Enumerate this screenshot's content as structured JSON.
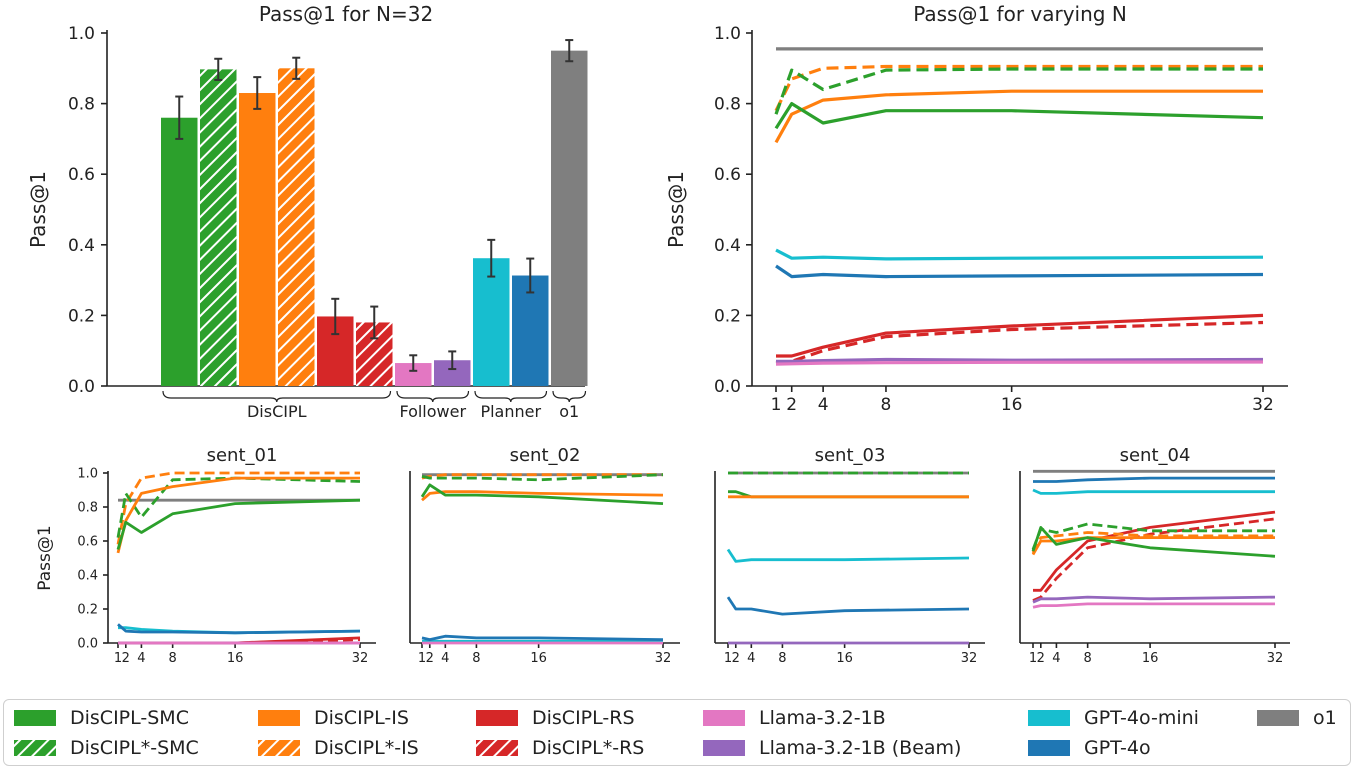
{
  "chart_data": [
    {
      "id": "bar",
      "type": "bar",
      "title": "Pass@1 for N=32",
      "ylabel": "Pass@1",
      "ylim": [
        0,
        1.0
      ],
      "yticks": [
        "0.0",
        "0.2",
        "0.4",
        "0.6",
        "0.8",
        "1.0"
      ],
      "bars": [
        {
          "name": "DisCIPL-SMC",
          "value": 0.76,
          "err": 0.06,
          "color": "#2ca02c",
          "hatch": false
        },
        {
          "name": "DisCIPL*-SMC",
          "value": 0.897,
          "err": 0.03,
          "color": "#2ca02c",
          "hatch": true
        },
        {
          "name": "DisCIPL-IS",
          "value": 0.83,
          "err": 0.045,
          "color": "#ff7f0e",
          "hatch": false
        },
        {
          "name": "DisCIPL*-IS",
          "value": 0.9,
          "err": 0.03,
          "color": "#ff7f0e",
          "hatch": true
        },
        {
          "name": "DisCIPL-RS",
          "value": 0.197,
          "err": 0.05,
          "color": "#d62728",
          "hatch": false
        },
        {
          "name": "DisCIPL*-RS",
          "value": 0.18,
          "err": 0.045,
          "color": "#d62728",
          "hatch": true
        },
        {
          "name": "Llama-3.2-1B",
          "value": 0.065,
          "err": 0.022,
          "color": "#e377c2",
          "hatch": false
        },
        {
          "name": "Llama-3.2-1B (Beam)",
          "value": 0.073,
          "err": 0.025,
          "color": "#9467bd",
          "hatch": false
        },
        {
          "name": "GPT-4o-mini",
          "value": 0.362,
          "err": 0.052,
          "color": "#17becf",
          "hatch": false
        },
        {
          "name": "GPT-4o",
          "value": 0.313,
          "err": 0.048,
          "color": "#1f77b4",
          "hatch": false
        },
        {
          "name": "o1",
          "value": 0.95,
          "err": 0.03,
          "color": "#7f7f7f",
          "hatch": false
        }
      ],
      "groups": [
        {
          "label": "DisCIPL",
          "first": 0,
          "last": 5
        },
        {
          "label": "Follower",
          "first": 6,
          "last": 7
        },
        {
          "label": "Planner",
          "first": 8,
          "last": 9
        },
        {
          "label": "o1",
          "first": 10,
          "last": 10
        }
      ]
    },
    {
      "id": "lines",
      "type": "line",
      "title": "Pass@1 for varying N",
      "ylabel": "Pass@1",
      "x": [
        1,
        2,
        4,
        8,
        16,
        32
      ],
      "xticks": [
        "1",
        "2",
        "4",
        "8",
        "16",
        "32"
      ],
      "ylim": [
        0,
        1.0
      ],
      "yticks": [
        "0.0",
        "0.2",
        "0.4",
        "0.6",
        "0.8",
        "1.0"
      ],
      "series": [
        {
          "name": "o1",
          "values": [
            0.955,
            0.955,
            0.955,
            0.955,
            0.955,
            0.955
          ],
          "color": "#7f7f7f",
          "dashed": false
        },
        {
          "name": "DisCIPL*-IS",
          "values": [
            0.78,
            0.87,
            0.9,
            0.905,
            0.905,
            0.905
          ],
          "color": "#ff7f0e",
          "dashed": true
        },
        {
          "name": "DisCIPL*-SMC",
          "values": [
            0.77,
            0.895,
            0.84,
            0.895,
            0.898,
            0.898
          ],
          "color": "#2ca02c",
          "dashed": true
        },
        {
          "name": "DisCIPL-IS",
          "values": [
            0.69,
            0.77,
            0.81,
            0.825,
            0.835,
            0.835
          ],
          "color": "#ff7f0e",
          "dashed": false
        },
        {
          "name": "DisCIPL-SMC",
          "values": [
            0.73,
            0.8,
            0.745,
            0.78,
            0.78,
            0.76
          ],
          "color": "#2ca02c",
          "dashed": false
        },
        {
          "name": "GPT-4o-mini",
          "values": [
            0.385,
            0.362,
            0.365,
            0.36,
            0.362,
            0.365
          ],
          "color": "#17becf",
          "dashed": false
        },
        {
          "name": "GPT-4o",
          "values": [
            0.34,
            0.31,
            0.316,
            0.31,
            0.312,
            0.316
          ],
          "color": "#1f77b4",
          "dashed": false
        },
        {
          "name": "DisCIPL-RS",
          "values": [
            0.085,
            0.085,
            0.11,
            0.15,
            0.17,
            0.2
          ],
          "color": "#d62728",
          "dashed": false
        },
        {
          "name": "DisCIPL*-RS",
          "values": [
            0.065,
            0.07,
            0.1,
            0.14,
            0.16,
            0.18
          ],
          "color": "#d62728",
          "dashed": true
        },
        {
          "name": "Llama-3.2-1B (Beam)",
          "values": [
            0.07,
            0.07,
            0.072,
            0.075,
            0.073,
            0.075
          ],
          "color": "#9467bd",
          "dashed": false
        },
        {
          "name": "Llama-3.2-1B",
          "values": [
            0.062,
            0.063,
            0.065,
            0.066,
            0.067,
            0.068
          ],
          "color": "#e377c2",
          "dashed": false
        }
      ]
    },
    {
      "id": "sent_01",
      "type": "line",
      "title": "sent_01",
      "ylabel": "Pass@1",
      "x": [
        1,
        2,
        4,
        8,
        16,
        32
      ],
      "xticks": [
        "1",
        "2",
        "4",
        "8",
        "16",
        "32"
      ],
      "ylim": [
        0,
        1.0
      ],
      "yticks": [
        "0.0",
        "0.2",
        "0.4",
        "0.6",
        "0.8",
        "1.0"
      ],
      "series": [
        {
          "name": "o1",
          "values": [
            0.84,
            0.84,
            0.84,
            0.84,
            0.84,
            0.84
          ],
          "color": "#7f7f7f",
          "dashed": false
        },
        {
          "name": "DisCIPL*-IS",
          "values": [
            0.58,
            0.82,
            0.97,
            1.0,
            1.0,
            1.0
          ],
          "color": "#ff7f0e",
          "dashed": true
        },
        {
          "name": "DisCIPL*-SMC",
          "values": [
            0.62,
            0.88,
            0.74,
            0.96,
            0.97,
            0.95
          ],
          "color": "#2ca02c",
          "dashed": true
        },
        {
          "name": "DisCIPL-IS",
          "values": [
            0.53,
            0.72,
            0.88,
            0.92,
            0.97,
            0.97
          ],
          "color": "#ff7f0e",
          "dashed": false
        },
        {
          "name": "DisCIPL-SMC",
          "values": [
            0.55,
            0.71,
            0.65,
            0.76,
            0.82,
            0.84
          ],
          "color": "#2ca02c",
          "dashed": false
        },
        {
          "name": "GPT-4o-mini",
          "values": [
            0.09,
            0.09,
            0.08,
            0.07,
            0.06,
            0.07
          ],
          "color": "#17becf",
          "dashed": false
        },
        {
          "name": "GPT-4o",
          "values": [
            0.11,
            0.07,
            0.065,
            0.065,
            0.06,
            0.07
          ],
          "color": "#1f77b4",
          "dashed": false
        },
        {
          "name": "DisCIPL-RS",
          "values": [
            0.0,
            0.0,
            0.0,
            0.0,
            0.0,
            0.03
          ],
          "color": "#d62728",
          "dashed": false
        },
        {
          "name": "DisCIPL*-RS",
          "values": [
            0.0,
            0.0,
            0.0,
            0.0,
            0.0,
            0.02
          ],
          "color": "#d62728",
          "dashed": true
        },
        {
          "name": "Llama-3.2-1B (Beam)",
          "values": [
            0.0,
            0.0,
            0.0,
            0.0,
            0.0,
            0.0
          ],
          "color": "#9467bd",
          "dashed": false
        },
        {
          "name": "Llama-3.2-1B",
          "values": [
            0.0,
            0.0,
            0.0,
            0.0,
            0.0,
            0.0
          ],
          "color": "#e377c2",
          "dashed": false
        }
      ]
    },
    {
      "id": "sent_02",
      "type": "line",
      "title": "sent_02",
      "x": [
        1,
        2,
        4,
        8,
        16,
        32
      ],
      "xticks": [
        "1",
        "2",
        "4",
        "8",
        "16",
        "32"
      ],
      "ylim": [
        0,
        1.0
      ],
      "series": [
        {
          "name": "o1",
          "values": [
            0.99,
            0.99,
            0.99,
            0.99,
            0.99,
            0.99
          ],
          "color": "#7f7f7f",
          "dashed": false
        },
        {
          "name": "DisCIPL*-IS",
          "values": [
            0.97,
            0.98,
            0.99,
            0.99,
            0.99,
            0.99
          ],
          "color": "#ff7f0e",
          "dashed": true
        },
        {
          "name": "DisCIPL*-SMC",
          "values": [
            0.98,
            0.97,
            0.97,
            0.97,
            0.96,
            0.99
          ],
          "color": "#2ca02c",
          "dashed": true
        },
        {
          "name": "DisCIPL-IS",
          "values": [
            0.84,
            0.88,
            0.89,
            0.89,
            0.88,
            0.87
          ],
          "color": "#ff7f0e",
          "dashed": false
        },
        {
          "name": "DisCIPL-SMC",
          "values": [
            0.86,
            0.93,
            0.87,
            0.87,
            0.86,
            0.82
          ],
          "color": "#2ca02c",
          "dashed": false
        },
        {
          "name": "GPT-4o-mini",
          "values": [
            0.01,
            0.01,
            0.01,
            0.01,
            0.01,
            0.01
          ],
          "color": "#17becf",
          "dashed": false
        },
        {
          "name": "GPT-4o",
          "values": [
            0.03,
            0.02,
            0.04,
            0.03,
            0.03,
            0.02
          ],
          "color": "#1f77b4",
          "dashed": false
        },
        {
          "name": "Llama-3.2-1B",
          "values": [
            0.0,
            0.0,
            0.0,
            0.0,
            0.0,
            0.0
          ],
          "color": "#e377c2",
          "dashed": false
        }
      ]
    },
    {
      "id": "sent_03",
      "type": "line",
      "title": "sent_03",
      "x": [
        1,
        2,
        4,
        8,
        16,
        32
      ],
      "xticks": [
        "1",
        "2",
        "4",
        "8",
        "16",
        "32"
      ],
      "ylim": [
        0,
        1.0
      ],
      "series": [
        {
          "name": "o1",
          "values": [
            1.0,
            1.0,
            1.0,
            1.0,
            1.0,
            1.0
          ],
          "color": "#7f7f7f",
          "dashed": false
        },
        {
          "name": "DisCIPL*-SMC",
          "values": [
            1.0,
            1.0,
            1.0,
            1.0,
            1.0,
            1.0
          ],
          "color": "#2ca02c",
          "dashed": true
        },
        {
          "name": "DisCIPL-SMC",
          "values": [
            0.89,
            0.89,
            0.86,
            0.86,
            0.86,
            0.86
          ],
          "color": "#2ca02c",
          "dashed": false
        },
        {
          "name": "DisCIPL-IS",
          "values": [
            0.86,
            0.86,
            0.86,
            0.86,
            0.86,
            0.86
          ],
          "color": "#ff7f0e",
          "dashed": false
        },
        {
          "name": "GPT-4o-mini",
          "values": [
            0.55,
            0.48,
            0.49,
            0.49,
            0.49,
            0.5
          ],
          "color": "#17becf",
          "dashed": false
        },
        {
          "name": "GPT-4o",
          "values": [
            0.27,
            0.2,
            0.2,
            0.17,
            0.19,
            0.2
          ],
          "color": "#1f77b4",
          "dashed": false
        },
        {
          "name": "Llama-3.2-1B (Beam)",
          "values": [
            0.0,
            0.0,
            0.0,
            0.0,
            0.0,
            0.0
          ],
          "color": "#9467bd",
          "dashed": false
        }
      ]
    },
    {
      "id": "sent_04",
      "type": "line",
      "title": "sent_04",
      "x": [
        1,
        2,
        4,
        8,
        16,
        32
      ],
      "xticks": [
        "1",
        "2",
        "4",
        "8",
        "16",
        "32"
      ],
      "ylim": [
        0,
        1.0
      ],
      "series": [
        {
          "name": "o1",
          "values": [
            1.01,
            1.01,
            1.01,
            1.01,
            1.01,
            1.01
          ],
          "color": "#7f7f7f",
          "dashed": false
        },
        {
          "name": "GPT-4o",
          "values": [
            0.95,
            0.95,
            0.95,
            0.96,
            0.97,
            0.97
          ],
          "color": "#1f77b4",
          "dashed": false
        },
        {
          "name": "GPT-4o-mini",
          "values": [
            0.9,
            0.88,
            0.88,
            0.89,
            0.89,
            0.89
          ],
          "color": "#17becf",
          "dashed": false
        },
        {
          "name": "DisCIPL-RS",
          "values": [
            0.31,
            0.31,
            0.43,
            0.6,
            0.68,
            0.77
          ],
          "color": "#d62728",
          "dashed": false
        },
        {
          "name": "DisCIPL*-RS",
          "values": [
            0.25,
            0.27,
            0.38,
            0.56,
            0.64,
            0.73
          ],
          "color": "#d62728",
          "dashed": true
        },
        {
          "name": "DisCIPL*-SMC",
          "values": [
            0.55,
            0.67,
            0.65,
            0.7,
            0.66,
            0.66
          ],
          "color": "#2ca02c",
          "dashed": true
        },
        {
          "name": "DisCIPL*-IS",
          "values": [
            0.53,
            0.62,
            0.63,
            0.65,
            0.63,
            0.63
          ],
          "color": "#ff7f0e",
          "dashed": true
        },
        {
          "name": "DisCIPL-IS",
          "values": [
            0.52,
            0.6,
            0.6,
            0.62,
            0.62,
            0.62
          ],
          "color": "#ff7f0e",
          "dashed": false
        },
        {
          "name": "DisCIPL-SMC",
          "values": [
            0.54,
            0.68,
            0.58,
            0.62,
            0.56,
            0.51
          ],
          "color": "#2ca02c",
          "dashed": false
        },
        {
          "name": "Llama-3.2-1B (Beam)",
          "values": [
            0.24,
            0.26,
            0.26,
            0.27,
            0.26,
            0.27
          ],
          "color": "#9467bd",
          "dashed": false
        },
        {
          "name": "Llama-3.2-1B",
          "values": [
            0.21,
            0.22,
            0.22,
            0.23,
            0.23,
            0.23
          ],
          "color": "#e377c2",
          "dashed": false
        }
      ]
    }
  ],
  "legend": [
    {
      "label": "DisCIPL-SMC",
      "color": "#2ca02c",
      "hatch": false
    },
    {
      "label": "DisCIPL*-SMC",
      "color": "#2ca02c",
      "hatch": true
    },
    {
      "label": "DisCIPL-IS",
      "color": "#ff7f0e",
      "hatch": false
    },
    {
      "label": "DisCIPL*-IS",
      "color": "#ff7f0e",
      "hatch": true
    },
    {
      "label": "DisCIPL-RS",
      "color": "#d62728",
      "hatch": false
    },
    {
      "label": "DisCIPL*-RS",
      "color": "#d62728",
      "hatch": true
    },
    {
      "label": "Llama-3.2-1B",
      "color": "#e377c2",
      "hatch": false
    },
    {
      "label": "Llama-3.2-1B (Beam)",
      "color": "#9467bd",
      "hatch": false
    },
    {
      "label": "GPT-4o-mini",
      "color": "#17becf",
      "hatch": false
    },
    {
      "label": "GPT-4o",
      "color": "#1f77b4",
      "hatch": false
    },
    {
      "label": "o1",
      "color": "#7f7f7f",
      "hatch": false
    }
  ]
}
